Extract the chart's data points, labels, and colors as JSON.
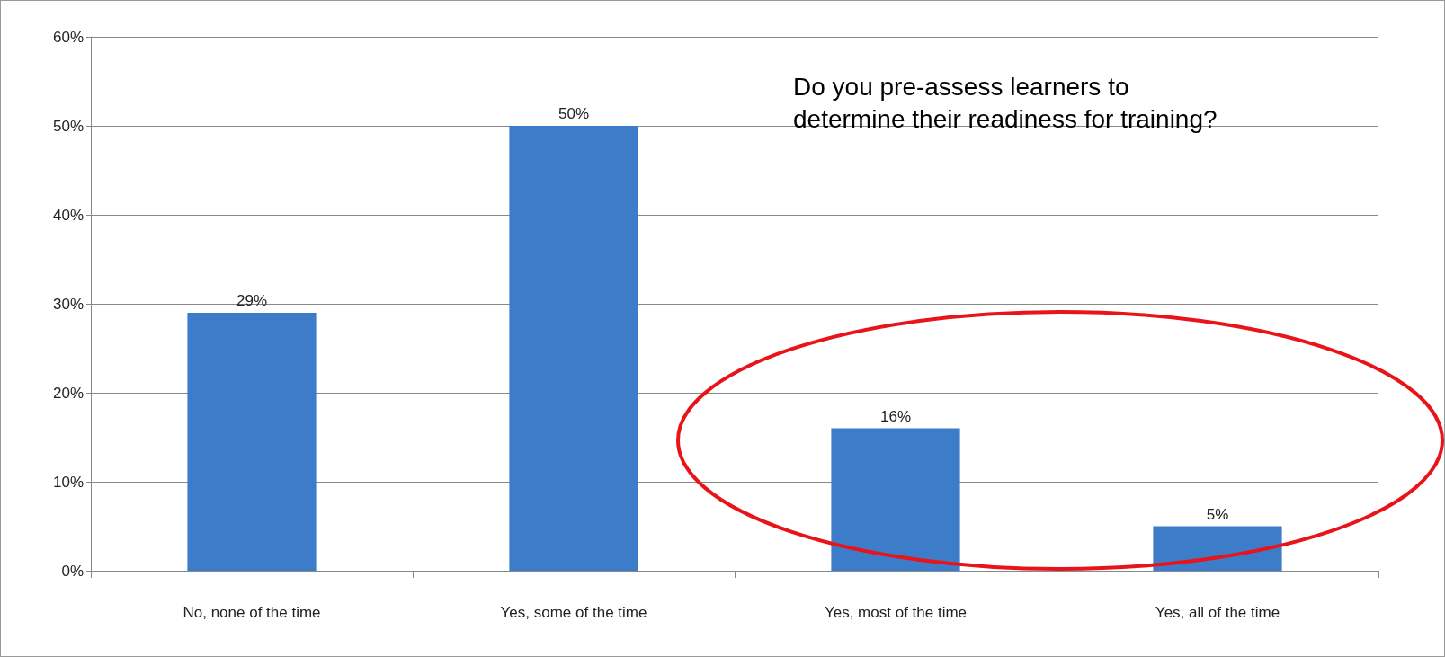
{
  "chart_data": {
    "type": "bar",
    "title": "Do you pre-assess learners to determine their readiness for training?",
    "categories": [
      "No, none of the time",
      "Yes, some of the time",
      "Yes, most of the time",
      "Yes, all of the time"
    ],
    "values": [
      29,
      50,
      16,
      5
    ],
    "color": "#3d7cc9",
    "ylim": [
      0,
      60
    ],
    "yticks": [
      {
        "value": 0,
        "label": "0%"
      },
      {
        "value": 10,
        "label": "10%"
      },
      {
        "value": 20,
        "label": "20%"
      },
      {
        "value": 30,
        "label": "30%"
      },
      {
        "value": 40,
        "label": "40%"
      },
      {
        "value": 50,
        "label": "50%"
      },
      {
        "value": 60,
        "label": "60%"
      }
    ],
    "value_labels": [
      "29%",
      "50%",
      "16%",
      "5%"
    ],
    "grid": "y"
  }
}
